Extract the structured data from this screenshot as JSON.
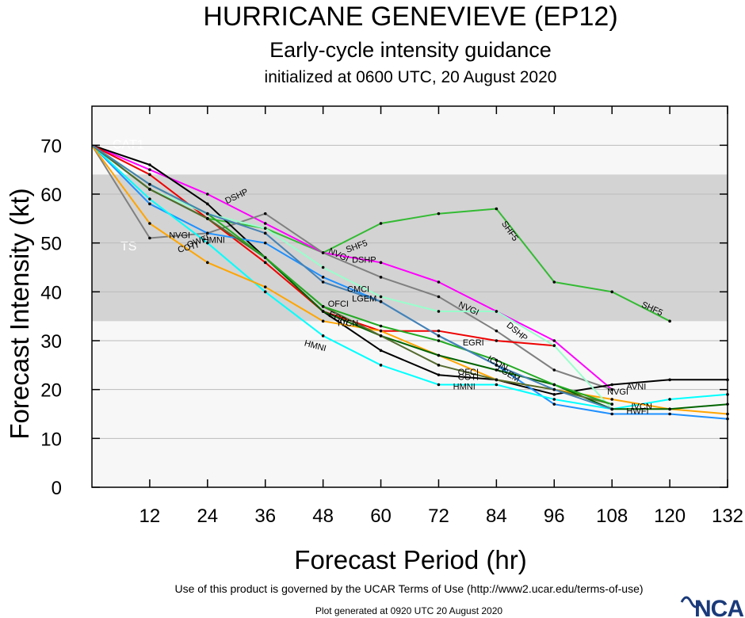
{
  "title": "HURRICANE GENEVIEVE (EP12)",
  "subtitle": "Early-cycle intensity guidance",
  "subtitle2": "initialized at 0600 UTC, 20 August 2020",
  "footer": {
    "terms": "Use of this product is governed by the UCAR Terms of Use (http://www2.ucar.edu/terms-of-use)",
    "generated": "Plot generated at 0920 UTC  20 August 2020",
    "logo": "NCAR"
  },
  "chart_data": {
    "type": "line",
    "xlabel": "Forecast Period (hr)",
    "ylabel": "Forecast Intensity (kt)",
    "xlim": [
      0,
      132
    ],
    "ylim": [
      0,
      78
    ],
    "xticks": [
      12,
      24,
      36,
      48,
      60,
      72,
      84,
      96,
      108,
      120,
      132
    ],
    "yticks": [
      0,
      10,
      20,
      30,
      40,
      50,
      60,
      70
    ],
    "bands": [
      {
        "label": "TS",
        "from": 34,
        "to": 64,
        "color": "#d3d3d3"
      },
      {
        "label": "CAT1",
        "from": 64,
        "to": 78,
        "color": "#f7f7f7"
      }
    ],
    "background": "#f7f7f7",
    "series": [
      {
        "name": "SHF5",
        "color": "#33bb33",
        "x": [
          0,
          12,
          24,
          36,
          48,
          60,
          72,
          84,
          96,
          108,
          120
        ],
        "y": [
          70,
          61,
          55,
          53,
          48,
          54,
          56,
          57,
          42,
          40,
          34
        ]
      },
      {
        "name": "DSHP",
        "color": "#ff00ff",
        "x": [
          0,
          12,
          24,
          36,
          48,
          60,
          72,
          84,
          96,
          108
        ],
        "y": [
          70,
          65,
          60,
          54,
          48,
          46,
          42,
          36,
          30,
          20
        ]
      },
      {
        "name": "NVGI",
        "color": "#808080",
        "x": [
          0,
          12,
          24,
          36,
          48,
          60,
          72,
          84,
          96,
          108
        ],
        "y": [
          70,
          51,
          52,
          56,
          48,
          43,
          39,
          32,
          24,
          20
        ]
      },
      {
        "name": "AVNI",
        "color": "#000000",
        "x": [
          0,
          12,
          24,
          36,
          48,
          60,
          72,
          84,
          96,
          108,
          120,
          132
        ],
        "y": [
          70,
          66,
          58,
          47,
          36,
          28,
          23,
          22,
          19,
          21,
          22,
          22
        ]
      },
      {
        "name": "EGRI",
        "color": "#ee0000",
        "x": [
          0,
          12,
          24,
          36,
          48,
          60,
          72,
          84,
          96
        ],
        "y": [
          70,
          64,
          55,
          46,
          36,
          32,
          32,
          30,
          29
        ]
      },
      {
        "name": "HWFI",
        "color": "#1e90ff",
        "x": [
          0,
          12,
          24,
          36,
          48,
          60,
          72,
          84,
          96,
          108,
          120,
          132
        ],
        "y": [
          70,
          58,
          52,
          50,
          43,
          38,
          31,
          25,
          17,
          15,
          15,
          14
        ]
      },
      {
        "name": "HMNI",
        "color": "#00ffff",
        "x": [
          0,
          12,
          24,
          36,
          48,
          60,
          72,
          84,
          96,
          108,
          120,
          132
        ],
        "y": [
          70,
          59,
          50,
          40,
          31,
          25,
          21,
          21,
          18,
          16,
          18,
          19
        ]
      },
      {
        "name": "COTI",
        "color": "#ffa500",
        "x": [
          0,
          12,
          24,
          36,
          48,
          60,
          72,
          84,
          96,
          108,
          120,
          132
        ],
        "y": [
          70,
          54,
          46,
          41,
          34,
          32,
          27,
          22,
          20,
          18,
          16,
          15
        ]
      },
      {
        "name": "CMCI",
        "color": "#99ffcc",
        "x": [
          0,
          12,
          24,
          36,
          48,
          60,
          72,
          84,
          96,
          108
        ],
        "y": [
          70,
          61,
          56,
          53,
          45,
          39,
          36,
          36,
          29,
          16
        ]
      },
      {
        "name": "IVCN",
        "color": "#006400",
        "x": [
          0,
          12,
          24,
          36,
          48,
          60,
          72,
          84,
          96,
          108,
          120,
          132
        ],
        "y": [
          70,
          61,
          55,
          47,
          36,
          31,
          27,
          24,
          21,
          16,
          16,
          17
        ]
      },
      {
        "name": "OFCI",
        "color": "#556b2f",
        "x": [
          0,
          12,
          24,
          36,
          48,
          60,
          72,
          84,
          96,
          108
        ],
        "y": [
          70,
          61,
          55,
          47,
          37,
          31,
          25,
          22,
          20,
          17
        ]
      },
      {
        "name": "ICON",
        "color": "#22aa22",
        "x": [
          0,
          12,
          24,
          36,
          48,
          60,
          72,
          84,
          96,
          108
        ],
        "y": [
          70,
          62,
          56,
          47,
          37,
          33,
          30,
          26,
          21,
          17
        ]
      },
      {
        "name": "LGEM",
        "color": "#4682b4",
        "x": [
          0,
          12,
          24,
          36,
          48,
          60,
          72,
          84,
          96,
          108
        ],
        "y": [
          70,
          62,
          56,
          52,
          42,
          38,
          31,
          25,
          20,
          16
        ]
      }
    ],
    "labels": [
      {
        "text": "SHF5",
        "x": 53,
        "y": 48,
        "angle": -20
      },
      {
        "text": "SHF5",
        "x": 85,
        "y": 54,
        "angle": 55
      },
      {
        "text": "SHF5",
        "x": 114,
        "y": 37,
        "angle": 25
      },
      {
        "text": "DSHP",
        "x": 28,
        "y": 58,
        "angle": -25
      },
      {
        "text": "DSHP",
        "x": 54,
        "y": 46,
        "angle": 0
      },
      {
        "text": "DSHP",
        "x": 86,
        "y": 33,
        "angle": 40
      },
      {
        "text": "NVGI",
        "x": 49,
        "y": 48,
        "angle": 25
      },
      {
        "text": "NVGI",
        "x": 76,
        "y": 37,
        "angle": 25
      },
      {
        "text": "NVGI",
        "x": 107,
        "y": 19,
        "angle": 0
      },
      {
        "text": "NVGI",
        "x": 16,
        "y": 51,
        "angle": 0
      },
      {
        "text": "AVNI",
        "x": 111,
        "y": 20,
        "angle": 0
      },
      {
        "text": "EGRI",
        "x": 77,
        "y": 29,
        "angle": 0
      },
      {
        "text": "EGRI",
        "x": 49,
        "y": 35,
        "angle": 25
      },
      {
        "text": "CMCI",
        "x": 53,
        "y": 40,
        "angle": 0
      },
      {
        "text": "LGEM",
        "x": 54,
        "y": 38,
        "angle": 0
      },
      {
        "text": "LGEM",
        "x": 84,
        "y": 24,
        "angle": 30
      },
      {
        "text": "ICON",
        "x": 82,
        "y": 26,
        "angle": 30
      },
      {
        "text": "OFCI",
        "x": 49,
        "y": 37,
        "angle": 0
      },
      {
        "text": "HMNI",
        "x": 44,
        "y": 29,
        "angle": 15
      },
      {
        "text": "HMNI",
        "x": 23,
        "y": 50,
        "angle": 0
      },
      {
        "text": "HMNI",
        "x": 75,
        "y": 20,
        "angle": 0
      },
      {
        "text": "HWFI",
        "x": 111,
        "y": 15,
        "angle": 0
      },
      {
        "text": "COTI",
        "x": 18,
        "y": 48,
        "angle": -15
      },
      {
        "text": "COTI",
        "x": 76,
        "y": 22,
        "angle": 0
      },
      {
        "text": "IVCN",
        "x": 112,
        "y": 16,
        "angle": 0
      },
      {
        "text": "OFCI",
        "x": 76,
        "y": 23,
        "angle": 0
      },
      {
        "text": "IVCN",
        "x": 51,
        "y": 33,
        "angle": 0
      },
      {
        "text": "OWFI",
        "x": 20,
        "y": 49,
        "angle": -20
      }
    ]
  }
}
